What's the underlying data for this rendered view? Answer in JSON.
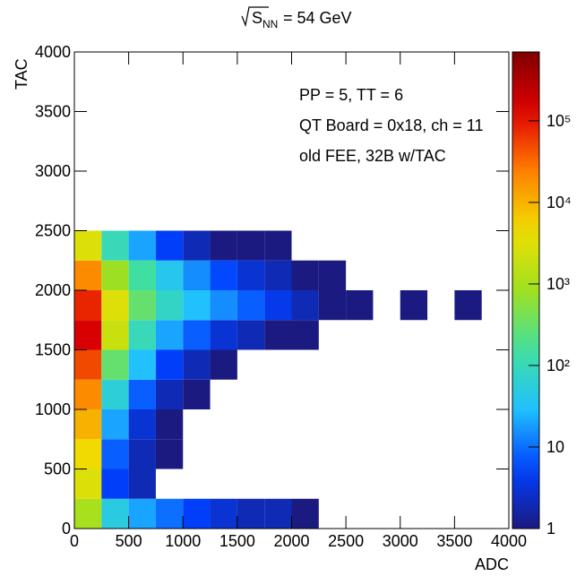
{
  "chart_data": {
    "type": "heatmap",
    "title": {
      "radicand": "S",
      "subscript": "NN",
      "text": "= 54 GeV"
    },
    "x_label": "ADC",
    "y_label": "TAC",
    "annotations": [
      "PP = 5, TT = 6",
      "QT Board = 0x18, ch = 11",
      "old FEE, 32B w/TAC"
    ],
    "xbins": [
      0,
      250,
      500,
      750,
      1000,
      1250,
      1500,
      1750,
      2000,
      2250,
      2500,
      2750,
      3000,
      3250,
      3500,
      3750,
      4000
    ],
    "ybins": [
      0,
      250,
      500,
      750,
      1000,
      1250,
      1500,
      1750,
      2000,
      2250,
      2500,
      2750,
      3000,
      3250,
      3500,
      3750,
      4000
    ],
    "z": [
      [
        1000,
        50,
        20,
        10,
        5,
        3,
        2,
        2,
        1,
        0,
        0,
        0,
        0,
        0,
        0,
        0
      ],
      [
        3000,
        5,
        2,
        0,
        0,
        0,
        0,
        0,
        0,
        0,
        0,
        0,
        0,
        0,
        0,
        0
      ],
      [
        5000,
        8,
        2,
        1,
        0,
        0,
        0,
        0,
        0,
        0,
        0,
        0,
        0,
        0,
        0,
        0
      ],
      [
        10000,
        20,
        3,
        1,
        0,
        0,
        0,
        0,
        0,
        0,
        0,
        0,
        0,
        0,
        0,
        0
      ],
      [
        20000,
        60,
        8,
        2,
        1,
        0,
        0,
        0,
        0,
        0,
        0,
        0,
        0,
        0,
        0,
        0
      ],
      [
        50000,
        300,
        30,
        5,
        2,
        1,
        0,
        0,
        0,
        0,
        0,
        0,
        0,
        0,
        0,
        0
      ],
      [
        150000,
        2000,
        100,
        20,
        8,
        3,
        2,
        1,
        1,
        0,
        0,
        0,
        0,
        0,
        0,
        0
      ],
      [
        80000,
        3000,
        300,
        80,
        30,
        15,
        8,
        4,
        2,
        1,
        1,
        0,
        1,
        0,
        1,
        0
      ],
      [
        20000,
        800,
        150,
        40,
        15,
        6,
        3,
        2,
        1,
        1,
        0,
        0,
        0,
        0,
        0,
        0
      ],
      [
        3000,
        100,
        20,
        5,
        2,
        1,
        1,
        1,
        0,
        0,
        0,
        0,
        0,
        0,
        0,
        0
      ],
      [
        0,
        0,
        0,
        0,
        0,
        0,
        0,
        0,
        0,
        0,
        0,
        0,
        0,
        0,
        0,
        0
      ],
      [
        0,
        0,
        0,
        0,
        0,
        0,
        0,
        0,
        0,
        0,
        0,
        0,
        0,
        0,
        0,
        0
      ],
      [
        0,
        0,
        0,
        0,
        0,
        0,
        0,
        0,
        0,
        0,
        0,
        0,
        0,
        0,
        0,
        0
      ],
      [
        0,
        0,
        0,
        0,
        0,
        0,
        0,
        0,
        0,
        0,
        0,
        0,
        0,
        0,
        0,
        0
      ],
      [
        0,
        0,
        0,
        0,
        0,
        0,
        0,
        0,
        0,
        0,
        0,
        0,
        0,
        0,
        0,
        0
      ],
      [
        0,
        0,
        0,
        0,
        0,
        0,
        0,
        0,
        0,
        0,
        0,
        0,
        0,
        0,
        0,
        0
      ]
    ],
    "xlim": [
      0,
      4000
    ],
    "ylim": [
      0,
      4000
    ],
    "xticks": [
      0,
      500,
      1000,
      1500,
      2000,
      2500,
      3000,
      3500,
      4000
    ],
    "yticks": [
      0,
      500,
      1000,
      1500,
      2000,
      2500,
      3000,
      3500,
      4000
    ],
    "zlim": [
      1,
      700000
    ],
    "zlog": true,
    "zticks": [
      1,
      10,
      {
        "value": 100,
        "label": "10²"
      },
      {
        "value": 1000,
        "label": "10³"
      },
      {
        "value": 10000,
        "label": "10⁴"
      },
      {
        "value": 100000,
        "label": "10⁵"
      }
    ],
    "colormap": [
      "#1a1a80",
      "#0040ff",
      "#20c0ff",
      "#40e0a0",
      "#a0e020",
      "#f0e000",
      "#ff8000",
      "#e00000",
      "#800000"
    ]
  }
}
